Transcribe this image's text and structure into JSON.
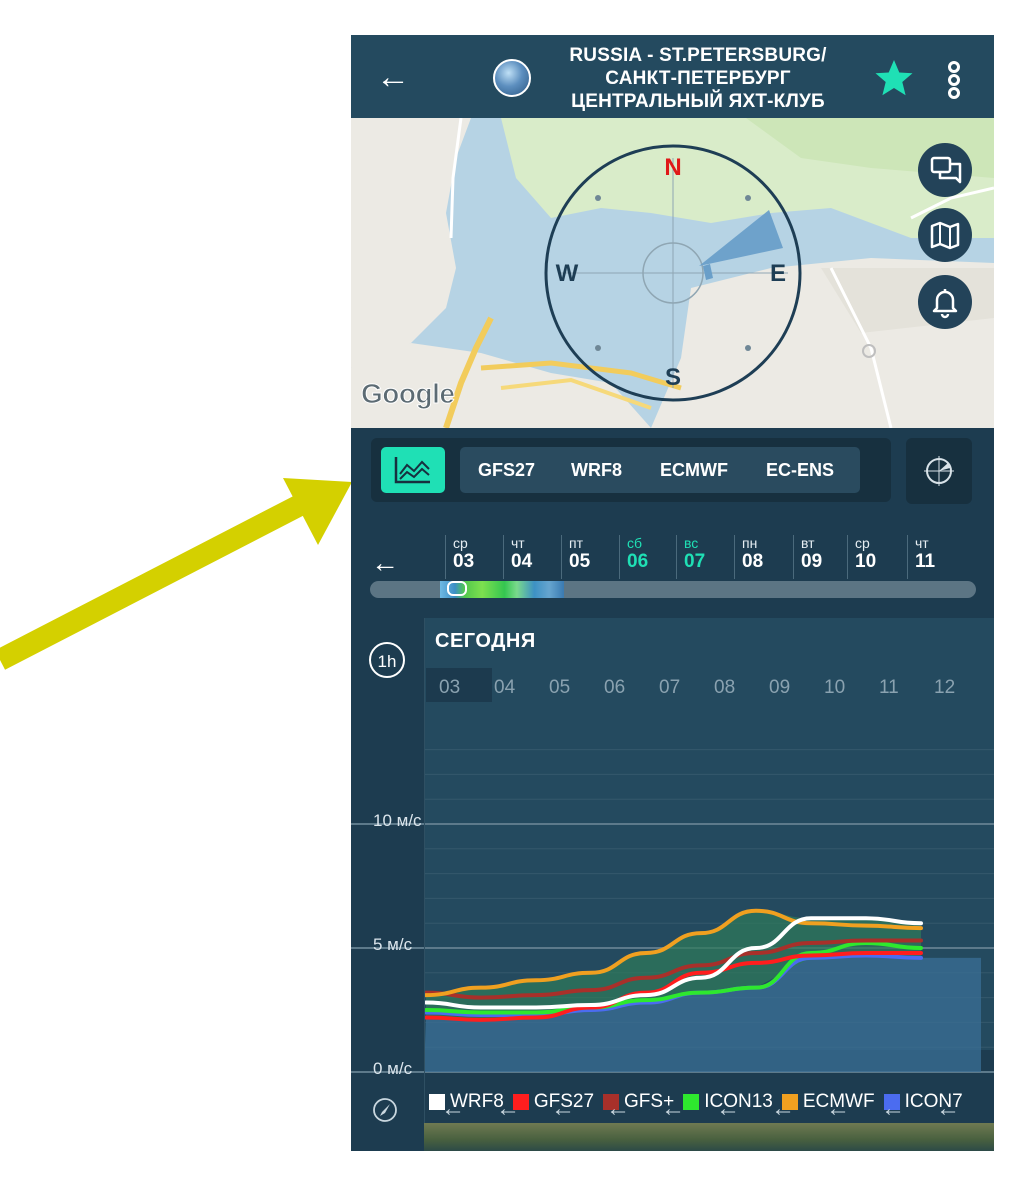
{
  "header": {
    "title_lines": [
      "RUSSIA - ST.PETERSBURG/",
      "САНКТ-ПЕТЕРБУРГ",
      "ЦЕНТРАЛЬНЫЙ ЯХТ-КЛУБ"
    ]
  },
  "map": {
    "compass": {
      "north": "N",
      "south": "S",
      "east": "E",
      "west": "W"
    },
    "attribution": "Google"
  },
  "models": {
    "tabs": [
      "GFS27",
      "WRF8",
      "ECMWF",
      "EC-ENS"
    ]
  },
  "dates": [
    {
      "name": "ср",
      "num": "03",
      "weekend": false
    },
    {
      "name": "чт",
      "num": "04",
      "weekend": false
    },
    {
      "name": "пт",
      "num": "05",
      "weekend": false
    },
    {
      "name": "сб",
      "num": "06",
      "weekend": true
    },
    {
      "name": "вс",
      "num": "07",
      "weekend": true
    },
    {
      "name": "пн",
      "num": "08",
      "weekend": false
    },
    {
      "name": "вт",
      "num": "09",
      "weekend": false
    },
    {
      "name": "ср",
      "num": "10",
      "weekend": false
    },
    {
      "name": "чт",
      "num": "11",
      "weekend": false
    }
  ],
  "chart": {
    "interval_label": "1h",
    "today_label": "СЕГОДНЯ",
    "hours": [
      "03",
      "04",
      "05",
      "06",
      "07",
      "08",
      "09",
      "10",
      "11",
      "12"
    ],
    "y_labels": [
      "10 м/с",
      "5 м/с",
      "0 м/с"
    ]
  },
  "legend": [
    {
      "name": "WRF8",
      "color": "#ffffff"
    },
    {
      "name": "GFS27",
      "color": "#ff1e1e"
    },
    {
      "name": "GFS+",
      "color": "#a8302a"
    },
    {
      "name": "ICON13",
      "color": "#2ee82e"
    },
    {
      "name": "ECMWF",
      "color": "#f0a020"
    },
    {
      "name": "ICON7",
      "color": "#4b6cf0"
    }
  ],
  "chart_data": {
    "type": "line",
    "title": "СЕГОДНЯ",
    "xlabel": "",
    "ylabel": "м/с",
    "x": [
      "03",
      "04",
      "05",
      "06",
      "07",
      "08",
      "09",
      "10",
      "11",
      "12"
    ],
    "ylim": [
      0,
      13
    ],
    "series": [
      {
        "name": "WRF8",
        "color": "#ffffff",
        "values": [
          2.8,
          2.6,
          2.6,
          2.7,
          3.1,
          3.8,
          5.0,
          6.2,
          6.2,
          6.0
        ]
      },
      {
        "name": "GFS27",
        "color": "#ff1e1e",
        "values": [
          2.2,
          2.1,
          2.2,
          2.6,
          3.2,
          4.0,
          4.4,
          4.7,
          4.8,
          4.8
        ]
      },
      {
        "name": "GFS+",
        "color": "#a8302a",
        "values": [
          3.2,
          3.0,
          3.1,
          3.3,
          3.8,
          4.3,
          4.8,
          5.2,
          5.3,
          5.3
        ]
      },
      {
        "name": "ICON13",
        "color": "#2ee82e",
        "values": [
          2.5,
          2.4,
          2.4,
          2.6,
          2.9,
          3.2,
          3.4,
          4.8,
          5.2,
          5.0
        ]
      },
      {
        "name": "ECMWF",
        "color": "#f0a020",
        "values": [
          3.1,
          3.4,
          3.7,
          4.0,
          4.8,
          5.6,
          6.5,
          6.0,
          5.9,
          5.8
        ]
      },
      {
        "name": "ICON7",
        "color": "#4b6cf0",
        "values": [
          2.4,
          2.3,
          2.3,
          2.5,
          2.8,
          3.2,
          3.4,
          4.6,
          4.7,
          4.6
        ]
      }
    ]
  }
}
